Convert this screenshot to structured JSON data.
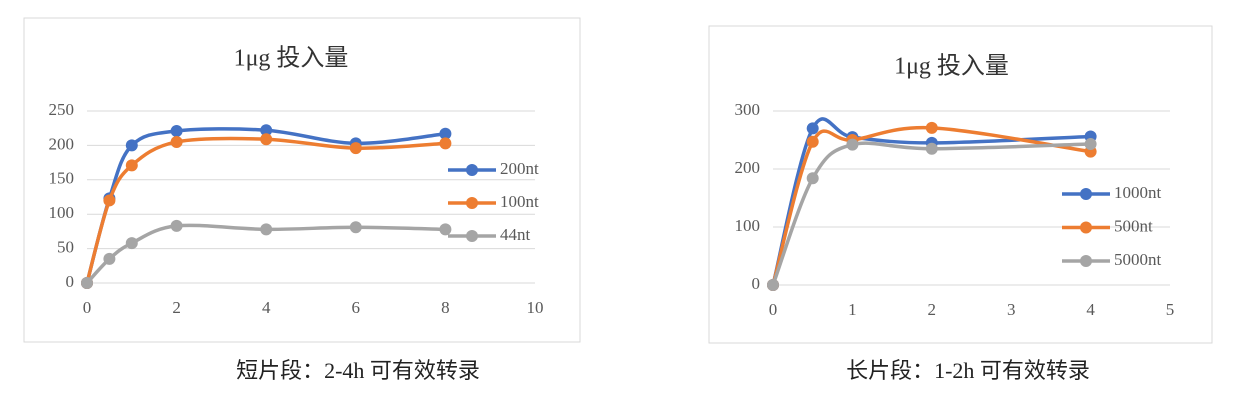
{
  "chart_data": [
    {
      "type": "line",
      "title": "1μg 投入量",
      "caption": "短片段：2-4h 可有效转录",
      "x": [
        0,
        0.5,
        1,
        2,
        4,
        6,
        8
      ],
      "series": [
        {
          "name": "200nt",
          "color": "#4472c4",
          "values": [
            0,
            123,
            200,
            221,
            222,
            203,
            217
          ]
        },
        {
          "name": "100nt",
          "color": "#ed7d31",
          "values": [
            0,
            120,
            171,
            205,
            209,
            196,
            203
          ]
        },
        {
          "name": "44nt",
          "color": "#a5a5a5",
          "values": [
            0,
            35,
            58,
            83,
            78,
            81,
            78
          ]
        }
      ],
      "xlim": [
        0,
        10
      ],
      "xticks": [
        0,
        2,
        4,
        6,
        8,
        10
      ],
      "ylim": [
        0,
        250
      ],
      "yticks": [
        0,
        50,
        100,
        150,
        200,
        250
      ],
      "grid": true,
      "smooth": true,
      "legend": "right"
    },
    {
      "type": "line",
      "title": "1μg 投入量",
      "caption": "长片段：1-2h 可有效转录",
      "x": [
        0,
        0.5,
        1,
        2,
        4
      ],
      "series": [
        {
          "name": "1000nt",
          "color": "#4472c4",
          "values": [
            0,
            270,
            255,
            245,
            256
          ]
        },
        {
          "name": "500nt",
          "color": "#ed7d31",
          "values": [
            0,
            247,
            250,
            271,
            230
          ]
        },
        {
          "name": "5000nt",
          "color": "#a5a5a5",
          "values": [
            0,
            184,
            242,
            235,
            243
          ]
        }
      ],
      "xlim": [
        0,
        5
      ],
      "xticks": [
        0,
        1,
        2,
        3,
        4,
        5
      ],
      "ylim": [
        0,
        300
      ],
      "yticks": [
        0,
        100,
        200,
        300
      ],
      "grid": true,
      "smooth": true,
      "legend": "right"
    }
  ]
}
